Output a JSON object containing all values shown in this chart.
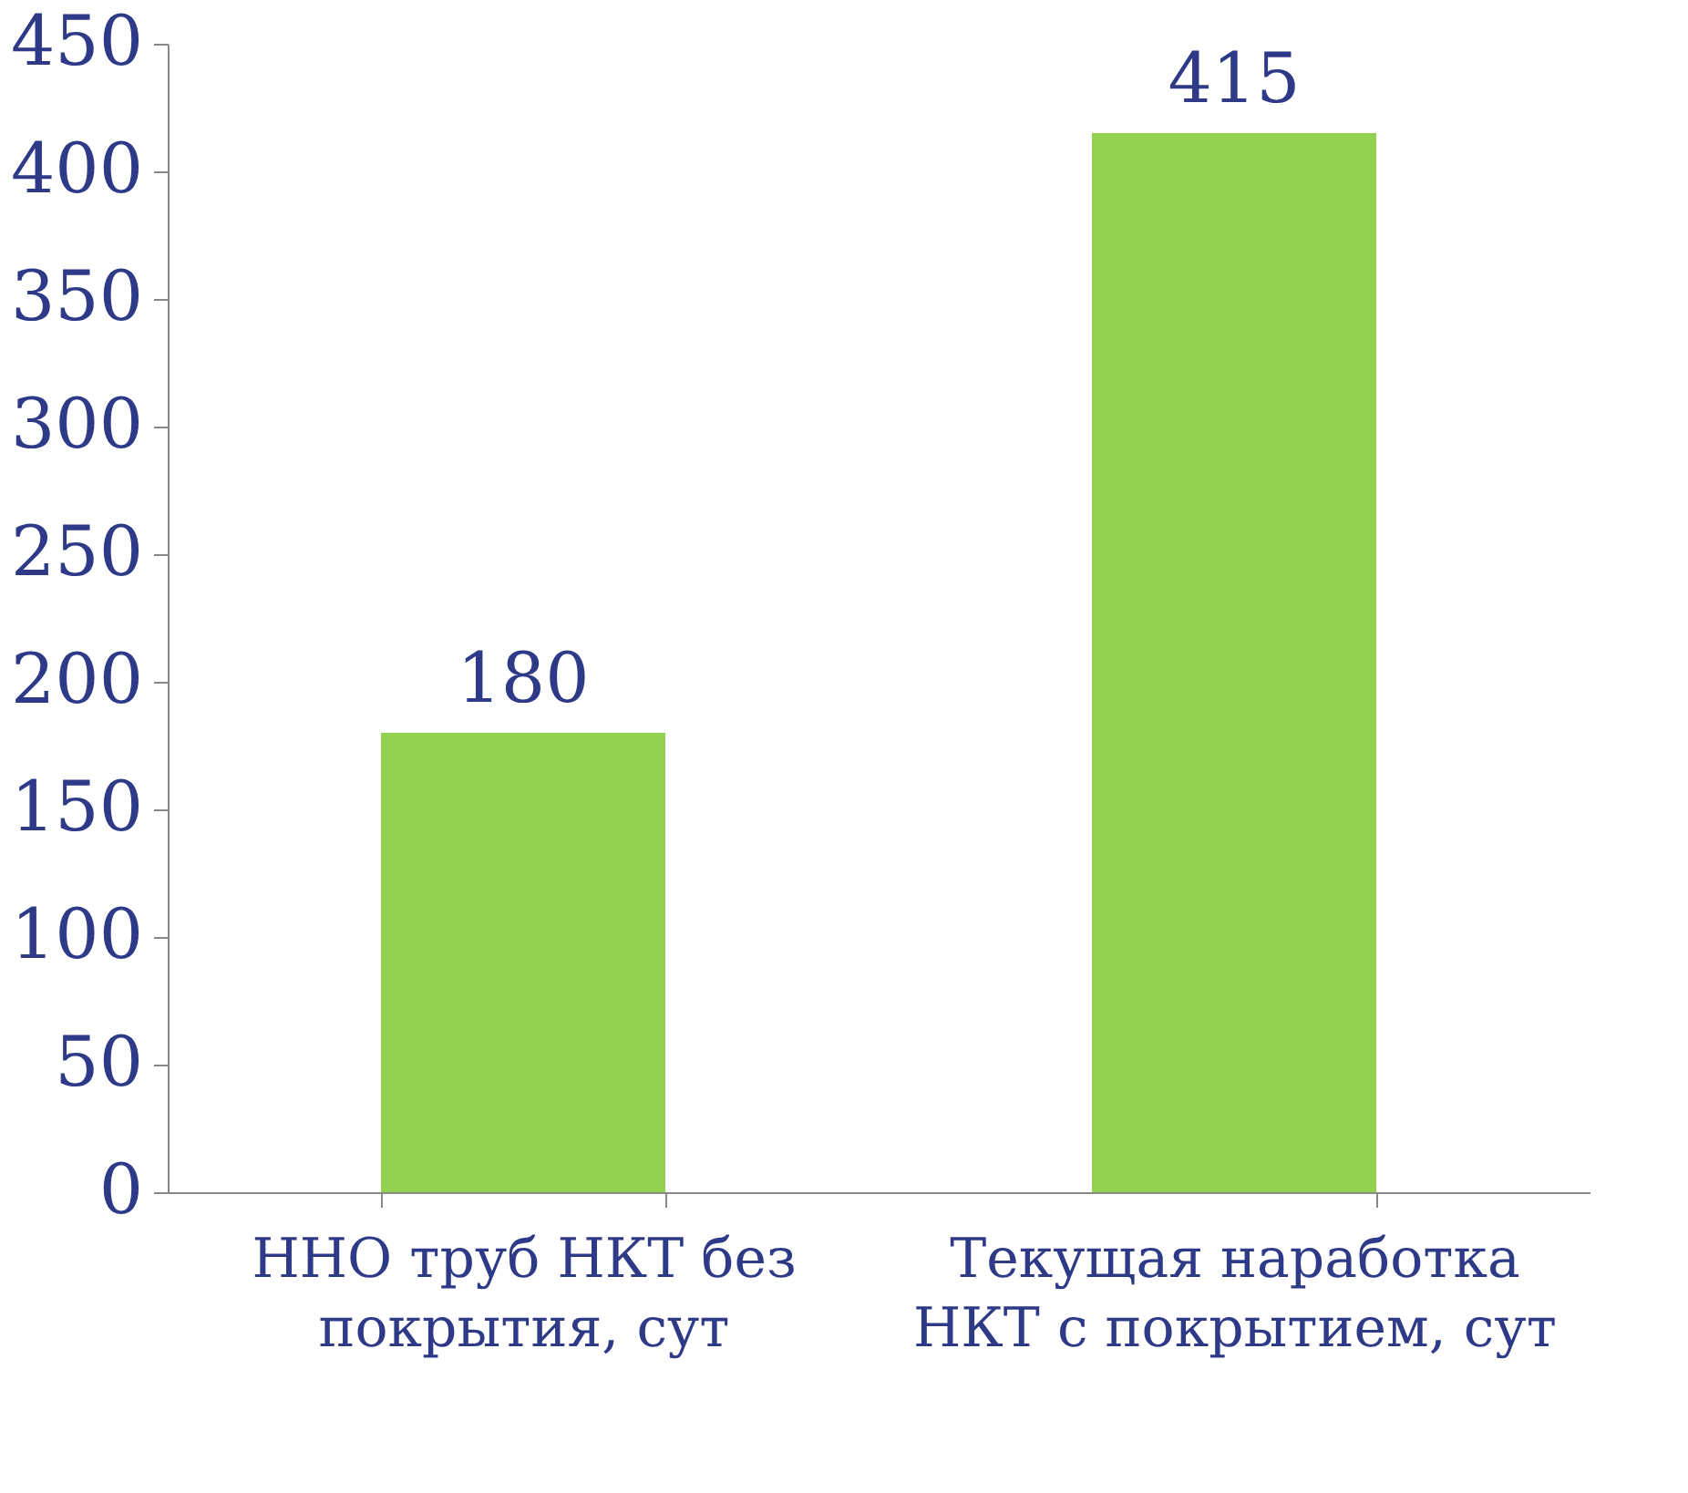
{
  "chart_data": {
    "type": "bar",
    "categories": [
      "ННО труб НКТ без покрытия, сут",
      "Текущая наработка НКТ с покрытием, сут"
    ],
    "values": [
      180,
      415
    ],
    "color": "#92d050",
    "ylim": [
      0,
      450
    ],
    "yticks": [
      0,
      50,
      100,
      150,
      200,
      250,
      300,
      350,
      400,
      450
    ],
    "grid": false,
    "data_labels": true
  }
}
